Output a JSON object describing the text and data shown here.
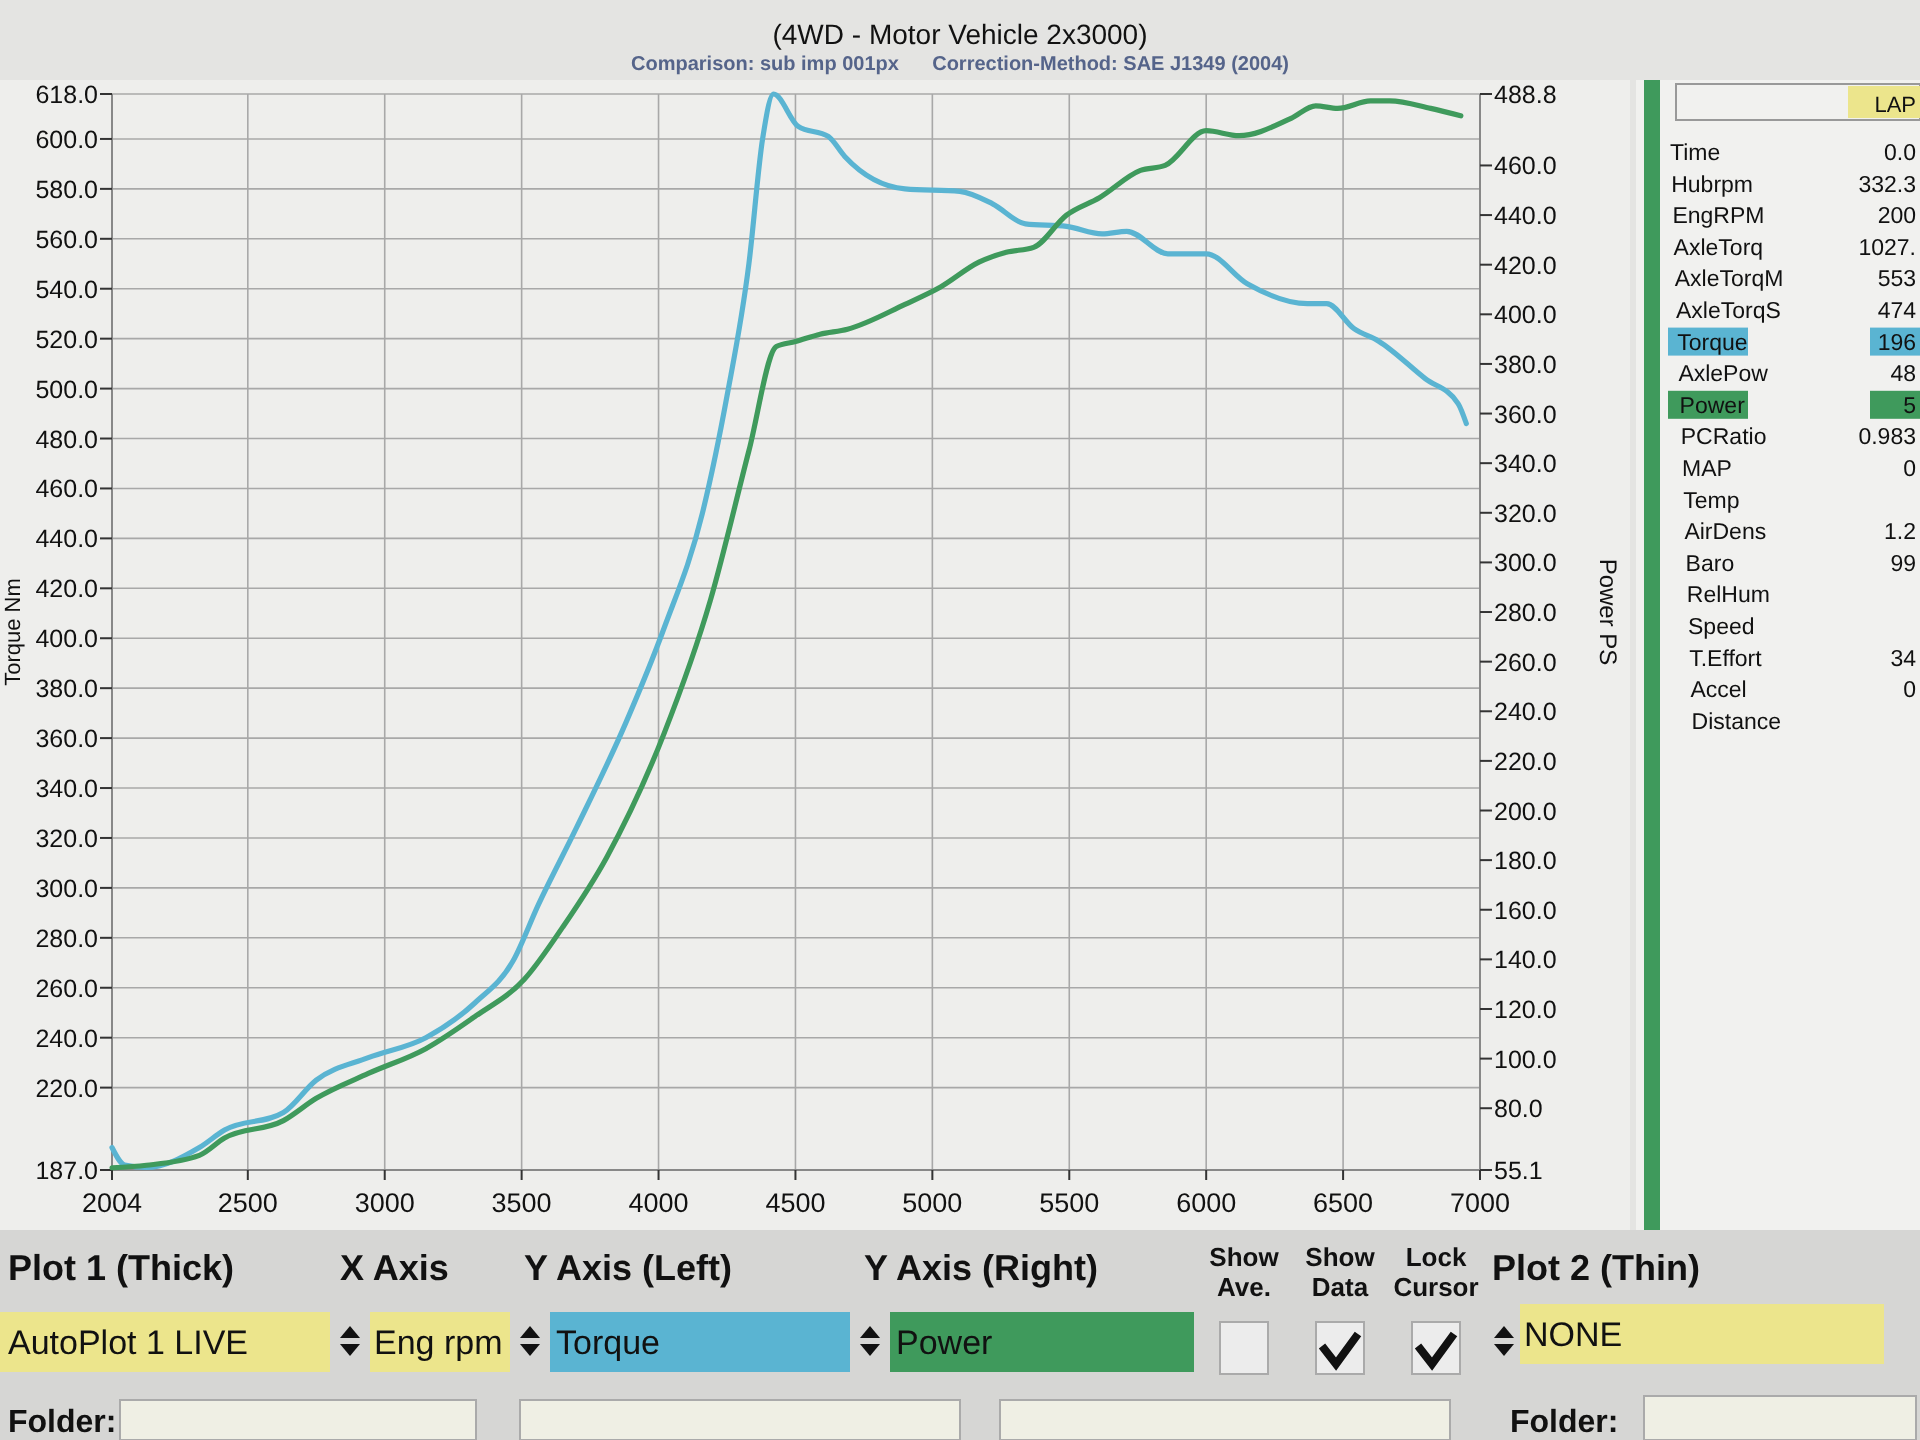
{
  "chart_data": {
    "type": "line",
    "title": "(4WD - Motor Vehicle 2x3000)",
    "subtitle": "Comparison: sub imp 001px      Correction-Method: SAE J1349 (2004)",
    "ylabel": "Torque Nm",
    "y2label": "Power PS",
    "xlim": [
      2004,
      7000
    ],
    "xticks": [
      2004,
      2500,
      3000,
      3500,
      4000,
      4500,
      5000,
      5500,
      6000,
      6500,
      7000
    ],
    "ylim": [
      187,
      618
    ],
    "yticks": [
      {
        "value": 187,
        "label": "187.0"
      },
      {
        "value": 220,
        "label": "220.0"
      },
      {
        "value": 240,
        "label": "240.0"
      },
      {
        "value": 260,
        "label": "260.0"
      },
      {
        "value": 280,
        "label": "280.0"
      },
      {
        "value": 300,
        "label": "300.0"
      },
      {
        "value": 320,
        "label": "320.0"
      },
      {
        "value": 340,
        "label": "340.0"
      },
      {
        "value": 360,
        "label": "360.0"
      },
      {
        "value": 380,
        "label": "380.0"
      },
      {
        "value": 400,
        "label": "400.0"
      },
      {
        "value": 420,
        "label": "420.0"
      },
      {
        "value": 440,
        "label": "440.0"
      },
      {
        "value": 460,
        "label": "460.0"
      },
      {
        "value": 480,
        "label": "480.0"
      },
      {
        "value": 500,
        "label": "500.0"
      },
      {
        "value": 520,
        "label": "520.0"
      },
      {
        "value": 540,
        "label": "540.0"
      },
      {
        "value": 560,
        "label": "560.0"
      },
      {
        "value": 580,
        "label": "580.0"
      },
      {
        "value": 600,
        "label": "600.0"
      },
      {
        "value": 618,
        "label": "618.0"
      }
    ],
    "y2lim": [
      55.1,
      488.8
    ],
    "y2ticks": [
      55.1,
      {
        "value": 80,
        "label": "80.0"
      },
      {
        "value": 100,
        "label": "100.0"
      },
      {
        "value": 120,
        "label": "120.0"
      },
      {
        "value": 140,
        "label": "140.0"
      },
      {
        "value": 160,
        "label": "160.0"
      },
      {
        "value": 180,
        "label": "180.0"
      },
      {
        "value": 200,
        "label": "200.0"
      },
      {
        "value": 220,
        "label": "220.0"
      },
      {
        "value": 240,
        "label": "240.0"
      },
      {
        "value": 260,
        "label": "260.0"
      },
      {
        "value": 280,
        "label": "280.0"
      },
      {
        "value": 300,
        "label": "300.0"
      },
      {
        "value": 320,
        "label": "320.0"
      },
      {
        "value": 340,
        "label": "340.0"
      },
      {
        "value": 360,
        "label": "360.0"
      },
      {
        "value": 380,
        "label": "380.0"
      },
      {
        "value": 400,
        "label": "400.0"
      },
      {
        "value": 420,
        "label": "420.0"
      },
      {
        "value": 440,
        "label": "440.0"
      },
      {
        "value": 460,
        "label": "460.0"
      },
      488.8
    ],
    "grid": true,
    "legend": "bottom",
    "series": [
      {
        "name": "Torque",
        "color": "#5ab4d2",
        "x": [
          2004,
          2050,
          2130,
          2323,
          2415,
          2630,
          2750,
          2940,
          3150,
          3330,
          3470,
          3560,
          3700,
          3880,
          4020,
          4160,
          4250,
          4330,
          4380,
          4420,
          4510,
          4620,
          4680,
          4900,
          5100,
          5220,
          5340,
          5490,
          5620,
          5710,
          5860,
          6000,
          6150,
          6370,
          6440,
          6540,
          6630,
          6800,
          6920,
          6950
        ],
        "values": [
          196,
          189,
          188,
          196,
          203,
          210,
          223,
          232,
          240,
          254,
          271,
          293,
          324,
          366,
          404,
          450,
          497,
          550,
          600,
          618,
          605,
          601,
          593,
          580,
          579,
          574,
          566,
          565,
          562,
          563,
          554,
          554,
          542,
          534,
          534,
          524,
          519,
          504,
          494,
          486
        ]
      },
      {
        "name": "Power",
        "color": "#3f9a5c",
        "axis": "y2",
        "x": [
          2004,
          2130,
          2323,
          2415,
          2630,
          2750,
          2940,
          3150,
          3330,
          3510,
          3650,
          3810,
          4020,
          4190,
          4330,
          4430,
          4500,
          4590,
          4690,
          4900,
          5030,
          5170,
          5270,
          5370,
          5490,
          5610,
          5760,
          5850,
          6000,
          6120,
          6310,
          6400,
          6480,
          6600,
          6670,
          6820,
          6930
        ],
        "values": [
          56,
          57,
          61,
          68,
          75,
          84,
          94,
          104,
          117,
          132,
          153,
          181,
          231,
          285,
          345,
          387,
          389,
          392,
          394,
          404,
          411,
          421,
          425,
          427,
          440,
          447,
          458,
          460,
          474,
          472,
          479,
          484,
          483,
          486,
          486,
          483,
          480
        ]
      }
    ],
    "annotations": [
      "LAP",
      "Time\t0.0",
      "Hubrpm\t332.3",
      "EngRPM\t200",
      "AxleTorq\t1027.",
      "AxleTorqM\t553",
      "AxleTorqS\t474",
      "Torque\t196",
      "AxlePow\t48",
      "Power\t5",
      "PCRatio\t0.983",
      "MAP\t0",
      "Temp",
      "AirDens\t1.2",
      "Baro\t99",
      "RelHum",
      "Speed",
      "T.Effort\t34",
      "Accel\t0",
      "Distance",
      "Plot 1 (Thick)",
      "X Axis",
      "Y Axis (Left)",
      "Y Axis (Right)",
      "Show\nAve.",
      "Show\nData",
      "Lock\nCursor",
      "Plot 2 (Thin)",
      "AutoPlot 1 LIVE",
      "Eng rpm",
      "NONE",
      "Folder:",
      "Folder:"
    ]
  }
}
